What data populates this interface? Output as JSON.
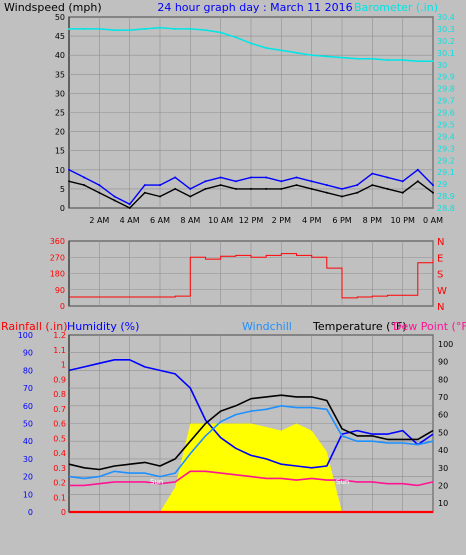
{
  "header": {
    "left_label": "Windspeed (mph)",
    "title": "24 hour graph day : March 11 2016",
    "right_label": "Barometer (.in)"
  },
  "colors": {
    "background": "#c0c0c0",
    "wind": "#000000",
    "gust": "#0000ff",
    "barometer": "#00e5e5",
    "direction": "#ff0000",
    "humidity": "#0000ff",
    "rainfall": "#ff0000",
    "windchill": "#1e90ff",
    "temperature": "#000000",
    "dewpoint": "#ff1493",
    "solar": "#ffff00",
    "grid": "#909090"
  },
  "chart_data": [
    {
      "type": "line",
      "title": "24 hour graph day : March 11 2016",
      "ylabel": "Windspeed (mph)",
      "y2label": "Barometer (.in)",
      "x_ticks": [
        "2 AM",
        "4 AM",
        "6 AM",
        "8 AM",
        "10 AM",
        "12 PM",
        "2 PM",
        "4 PM",
        "6 PM",
        "8 PM",
        "10 PM",
        "0 AM"
      ],
      "ylim": [
        0,
        50
      ],
      "y_ticks": [
        0,
        5,
        10,
        15,
        20,
        25,
        30,
        35,
        40,
        45,
        50
      ],
      "y2lim": [
        28.8,
        30.4
      ],
      "y2_ticks": [
        "28.8",
        "28.9",
        "29",
        "29.1",
        "29.2",
        "29.3",
        "29.4",
        "29.5",
        "29.6",
        "29.7",
        "29.8",
        "29.9",
        "30",
        "30.1",
        "30.2",
        "30.3",
        "30.4"
      ],
      "grid": true,
      "x_hours": [
        0,
        1,
        2,
        3,
        4,
        5,
        6,
        7,
        8,
        9,
        10,
        11,
        12,
        13,
        14,
        15,
        16,
        17,
        18,
        19,
        20,
        21,
        22,
        23,
        24
      ],
      "series": [
        {
          "key": "gust",
          "values": [
            10,
            8,
            6,
            3,
            1,
            6,
            6,
            8,
            5,
            7,
            8,
            7,
            8,
            8,
            7,
            8,
            7,
            6,
            5,
            6,
            9,
            8,
            7,
            10,
            6
          ]
        },
        {
          "key": "wind",
          "values": [
            7,
            6,
            4,
            2,
            0,
            4,
            3,
            5,
            3,
            5,
            6,
            5,
            5,
            5,
            5,
            6,
            5,
            4,
            3,
            4,
            6,
            5,
            4,
            7,
            4
          ]
        },
        {
          "key": "barometer",
          "axis": "y2",
          "values": [
            30.3,
            30.3,
            30.3,
            30.29,
            30.29,
            30.3,
            30.31,
            30.3,
            30.3,
            30.29,
            30.27,
            30.23,
            30.18,
            30.14,
            30.12,
            30.1,
            30.08,
            30.07,
            30.06,
            30.05,
            30.05,
            30.04,
            30.04,
            30.03,
            30.03
          ]
        }
      ]
    },
    {
      "type": "line",
      "ylim": [
        0,
        360
      ],
      "y_ticks": [
        0,
        90,
        180,
        270,
        360
      ],
      "compass_labels": [
        "N",
        "W",
        "S",
        "E",
        "N"
      ],
      "grid": true,
      "x_hours": [
        0,
        1,
        2,
        3,
        4,
        5,
        6,
        7,
        8,
        9,
        10,
        11,
        12,
        13,
        14,
        15,
        16,
        17,
        18,
        19,
        20,
        21,
        22,
        23,
        24
      ],
      "series": [
        {
          "key": "direction",
          "values": [
            50,
            50,
            50,
            50,
            50,
            50,
            50,
            55,
            270,
            260,
            275,
            280,
            270,
            280,
            290,
            280,
            270,
            210,
            45,
            50,
            55,
            60,
            60,
            240,
            260
          ]
        }
      ]
    },
    {
      "type": "line",
      "left_labels": [
        "Rainfall (.in)",
        "Humidity (%)"
      ],
      "series_labels": [
        "Windchill",
        "Temperature (°F)",
        "Dew Point (°F)"
      ],
      "rain_ylim": [
        0,
        1.2
      ],
      "rain_ticks": [
        "0",
        "0.1",
        "0.2",
        "0.3",
        "0.4",
        "0.5",
        "0.6",
        "0.7",
        "0.8",
        "0.9",
        "1",
        "1.1",
        "1.2"
      ],
      "humidity_ylim": [
        0,
        100
      ],
      "humidity_ticks": [
        0,
        10,
        20,
        30,
        40,
        50,
        60,
        70,
        80,
        90,
        100
      ],
      "temp_ylim": [
        5,
        105
      ],
      "temp_ticks": [
        10,
        20,
        30,
        40,
        50,
        60,
        70,
        80,
        90,
        100
      ],
      "solar_note_left": "Sun",
      "solar_note_right": "Sun",
      "grid": true,
      "x_hours": [
        0,
        1,
        2,
        3,
        4,
        5,
        6,
        7,
        8,
        9,
        10,
        11,
        12,
        13,
        14,
        15,
        16,
        17,
        18,
        19,
        20,
        21,
        22,
        23,
        24
      ],
      "series": [
        {
          "key": "humidity",
          "axis": "humidity",
          "values": [
            80,
            82,
            84,
            86,
            86,
            82,
            80,
            78,
            70,
            52,
            42,
            36,
            32,
            30,
            27,
            26,
            25,
            26,
            44,
            46,
            44,
            44,
            46,
            38,
            44
          ]
        },
        {
          "key": "temperature",
          "axis": "temp",
          "values": [
            32,
            30,
            29,
            31,
            32,
            33,
            31,
            35,
            45,
            55,
            62,
            65,
            69,
            70,
            71,
            70,
            70,
            68,
            52,
            48,
            48,
            46,
            46,
            46,
            51
          ]
        },
        {
          "key": "windchill",
          "axis": "temp",
          "values": [
            25,
            24,
            25,
            28,
            27,
            27,
            25,
            27,
            38,
            48,
            56,
            60,
            62,
            63,
            65,
            64,
            64,
            63,
            48,
            45,
            45,
            44,
            44,
            43,
            45
          ]
        },
        {
          "key": "dewpoint",
          "axis": "temp",
          "values": [
            20,
            20,
            21,
            22,
            22,
            22,
            21,
            22,
            28,
            28,
            27,
            26,
            25,
            24,
            24,
            23,
            24,
            23,
            23,
            22,
            22,
            21,
            21,
            20,
            22
          ]
        },
        {
          "key": "rainfall",
          "axis": "rain",
          "values": [
            0,
            0,
            0,
            0,
            0,
            0,
            0,
            0,
            0,
            0,
            0,
            0,
            0,
            0,
            0,
            0,
            0,
            0,
            0,
            0,
            0,
            0,
            0,
            0,
            0
          ]
        },
        {
          "key": "solar",
          "axis": "humidity",
          "values": [
            0,
            0,
            0,
            0,
            0,
            0,
            0,
            14,
            50,
            50,
            50,
            50,
            50,
            48,
            46,
            50,
            46,
            34,
            0,
            0,
            0,
            0,
            0,
            0,
            0
          ]
        }
      ]
    }
  ]
}
